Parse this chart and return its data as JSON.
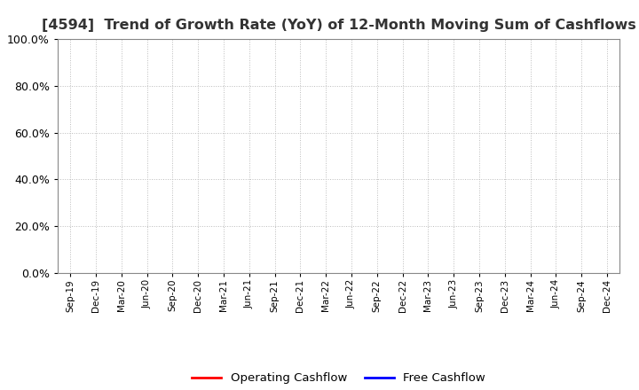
{
  "title": "[4594]  Trend of Growth Rate (YoY) of 12-Month Moving Sum of Cashflows",
  "title_fontsize": 11.5,
  "title_color": "#333333",
  "ylim": [
    0.0,
    1.0
  ],
  "yticks": [
    0.0,
    0.2,
    0.4,
    0.6,
    0.8,
    1.0
  ],
  "ytick_labels": [
    "0.0%",
    "20.0%",
    "40.0%",
    "60.0%",
    "80.0%",
    "100.0%"
  ],
  "x_labels": [
    "Sep-19",
    "Dec-19",
    "Mar-20",
    "Jun-20",
    "Sep-20",
    "Dec-20",
    "Mar-21",
    "Jun-21",
    "Sep-21",
    "Dec-21",
    "Mar-22",
    "Jun-22",
    "Sep-22",
    "Dec-22",
    "Mar-23",
    "Jun-23",
    "Sep-23",
    "Dec-23",
    "Mar-24",
    "Jun-24",
    "Sep-24",
    "Dec-24"
  ],
  "operating_cashflow_color": "#ff0000",
  "free_cashflow_color": "#0000ff",
  "legend_labels": [
    "Operating Cashflow",
    "Free Cashflow"
  ],
  "background_color": "#ffffff",
  "grid_color": "#bbbbbb",
  "grid_style": ":"
}
